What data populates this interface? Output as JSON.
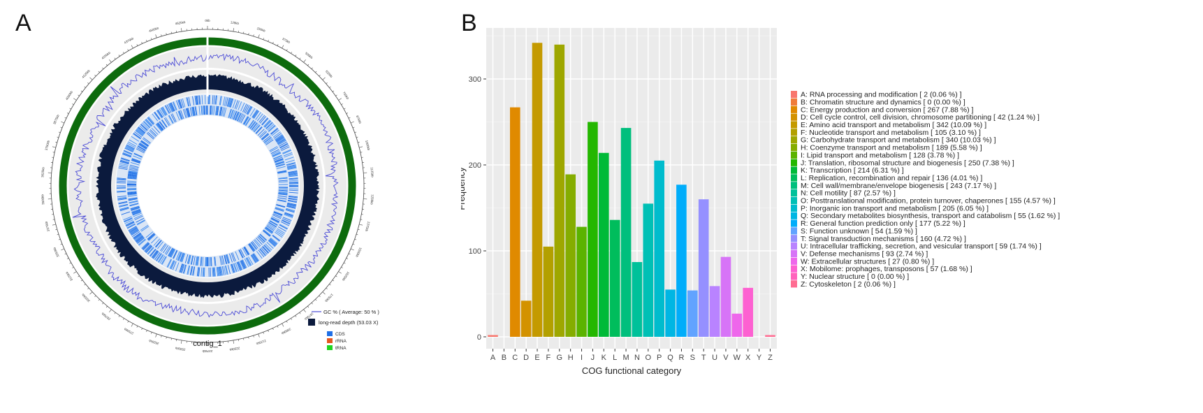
{
  "panels": {
    "a": "A",
    "b": "B"
  },
  "genome_map": {
    "contig_label": "contig_1",
    "legend": {
      "gc_label": "GC % ( Average: 50 % )",
      "depth_label": "long-read depth (53.03 X)",
      "features": [
        {
          "label": "CDS",
          "color": "#1f6fe6"
        },
        {
          "label": "rRNA",
          "color": "#e6561f"
        },
        {
          "label": "tRNA",
          "color": "#1fd41f"
        }
      ]
    },
    "colors": {
      "backbone": "#0d6b0d",
      "gc_line": "#4b4bd6",
      "depth": "#0b1a3d",
      "cds": "#1f6fe6",
      "track_bg": "#ebebeb"
    },
    "tick_labels": [
      "0kb",
      "125kb",
      "250kb",
      "375kb",
      "500kb",
      "625kb",
      "750kb",
      "875kb",
      "1000kb",
      "1125kb",
      "1250kb",
      "1375kb",
      "1500kb",
      "1625kb",
      "1750kb",
      "1875kb",
      "2000kb",
      "2125kb",
      "2250kb",
      "2375kb",
      "2500kb",
      "2625kb",
      "2750kb",
      "2875kb",
      "3000kb",
      "3125kb",
      "3250kb",
      "3375kb",
      "3500kb",
      "3625kb",
      "3750kb",
      "3875kb",
      "4000kb",
      "4125kb",
      "4250kb",
      "4375kb",
      "4500kb",
      "4625kb"
    ]
  },
  "chart_data": {
    "type": "bar",
    "xlabel": "COG functional category",
    "ylabel": "Frequency",
    "ylim": [
      0,
      370
    ],
    "yticks": [
      0,
      100,
      200,
      300
    ],
    "grid": true,
    "legend_position": "right",
    "categories": [
      "A",
      "B",
      "C",
      "D",
      "E",
      "F",
      "G",
      "H",
      "I",
      "J",
      "K",
      "L",
      "M",
      "N",
      "O",
      "P",
      "Q",
      "R",
      "S",
      "T",
      "U",
      "V",
      "W",
      "X",
      "Y",
      "Z"
    ],
    "values": [
      2,
      0,
      267,
      42,
      342,
      105,
      340,
      189,
      128,
      250,
      214,
      136,
      243,
      87,
      155,
      205,
      55,
      177,
      54,
      160,
      59,
      93,
      27,
      57,
      0,
      2
    ],
    "colors": [
      "#f8766d",
      "#f07c3a",
      "#e08a00",
      "#d39200",
      "#c49a00",
      "#b3a000",
      "#9ea700",
      "#85ad00",
      "#5bb300",
      "#24b700",
      "#00ba38",
      "#00bd5c",
      "#00bf7d",
      "#00c19a",
      "#00c0b5",
      "#00bccd",
      "#00b6e3",
      "#00adfa",
      "#61a3ff",
      "#9590ff",
      "#b983ff",
      "#d774f7",
      "#ee67eb",
      "#fd61d1",
      "#ff62bc",
      "#ff6c92"
    ],
    "legend_entries": [
      "A: RNA processing and modification [ 2 (0.06 %) ]",
      "B: Chromatin structure and dynamics [ 0 (0.00 %) ]",
      "C: Energy production and conversion [ 267 (7.88 %) ]",
      "D: Cell cycle control, cell division, chromosome partitioning [ 42 (1.24 %) ]",
      "E: Amino acid transport and metabolism [ 342 (10.09 %) ]",
      "F: Nucleotide transport and metabolism [ 105 (3.10 %) ]",
      "G: Carbohydrate transport and metabolism [ 340 (10.03 %) ]",
      "H: Coenzyme transport and metabolism [ 189 (5.58 %) ]",
      "I: Lipid transport and metabolism [ 128 (3.78 %) ]",
      "J: Translation, ribosomal structure and biogenesis [ 250 (7.38 %) ]",
      "K: Transcription [ 214 (6.31 %) ]",
      "L: Replication, recombination and repair [ 136 (4.01 %) ]",
      "M: Cell wall/membrane/envelope biogenesis [ 243 (7.17 %) ]",
      "N: Cell motility [ 87 (2.57 %) ]",
      "O: Posttranslational modification, protein turnover, chaperones [ 155 (4.57 %) ]",
      "P: Inorganic ion transport and metabolism [ 205 (6.05 %) ]",
      "Q: Secondary metabolites biosynthesis, transport and catabolism [ 55 (1.62 %) ]",
      "R: General function prediction only [ 177 (5.22 %) ]",
      "S: Function unknown [ 54 (1.59 %) ]",
      "T: Signal transduction mechanisms [ 160 (4.72 %) ]",
      "U: Intracellular trafficking, secretion, and vesicular transport [ 59 (1.74 %) ]",
      "V: Defense mechanisms [ 93 (2.74 %) ]",
      "W: Extracellular structures [ 27 (0.80 %) ]",
      "X: Mobilome: prophages, transposons [ 57 (1.68 %) ]",
      "Y: Nuclear structure [ 0 (0.00 %) ]",
      "Z: Cytoskeleton [ 2 (0.06 %) ]"
    ]
  }
}
